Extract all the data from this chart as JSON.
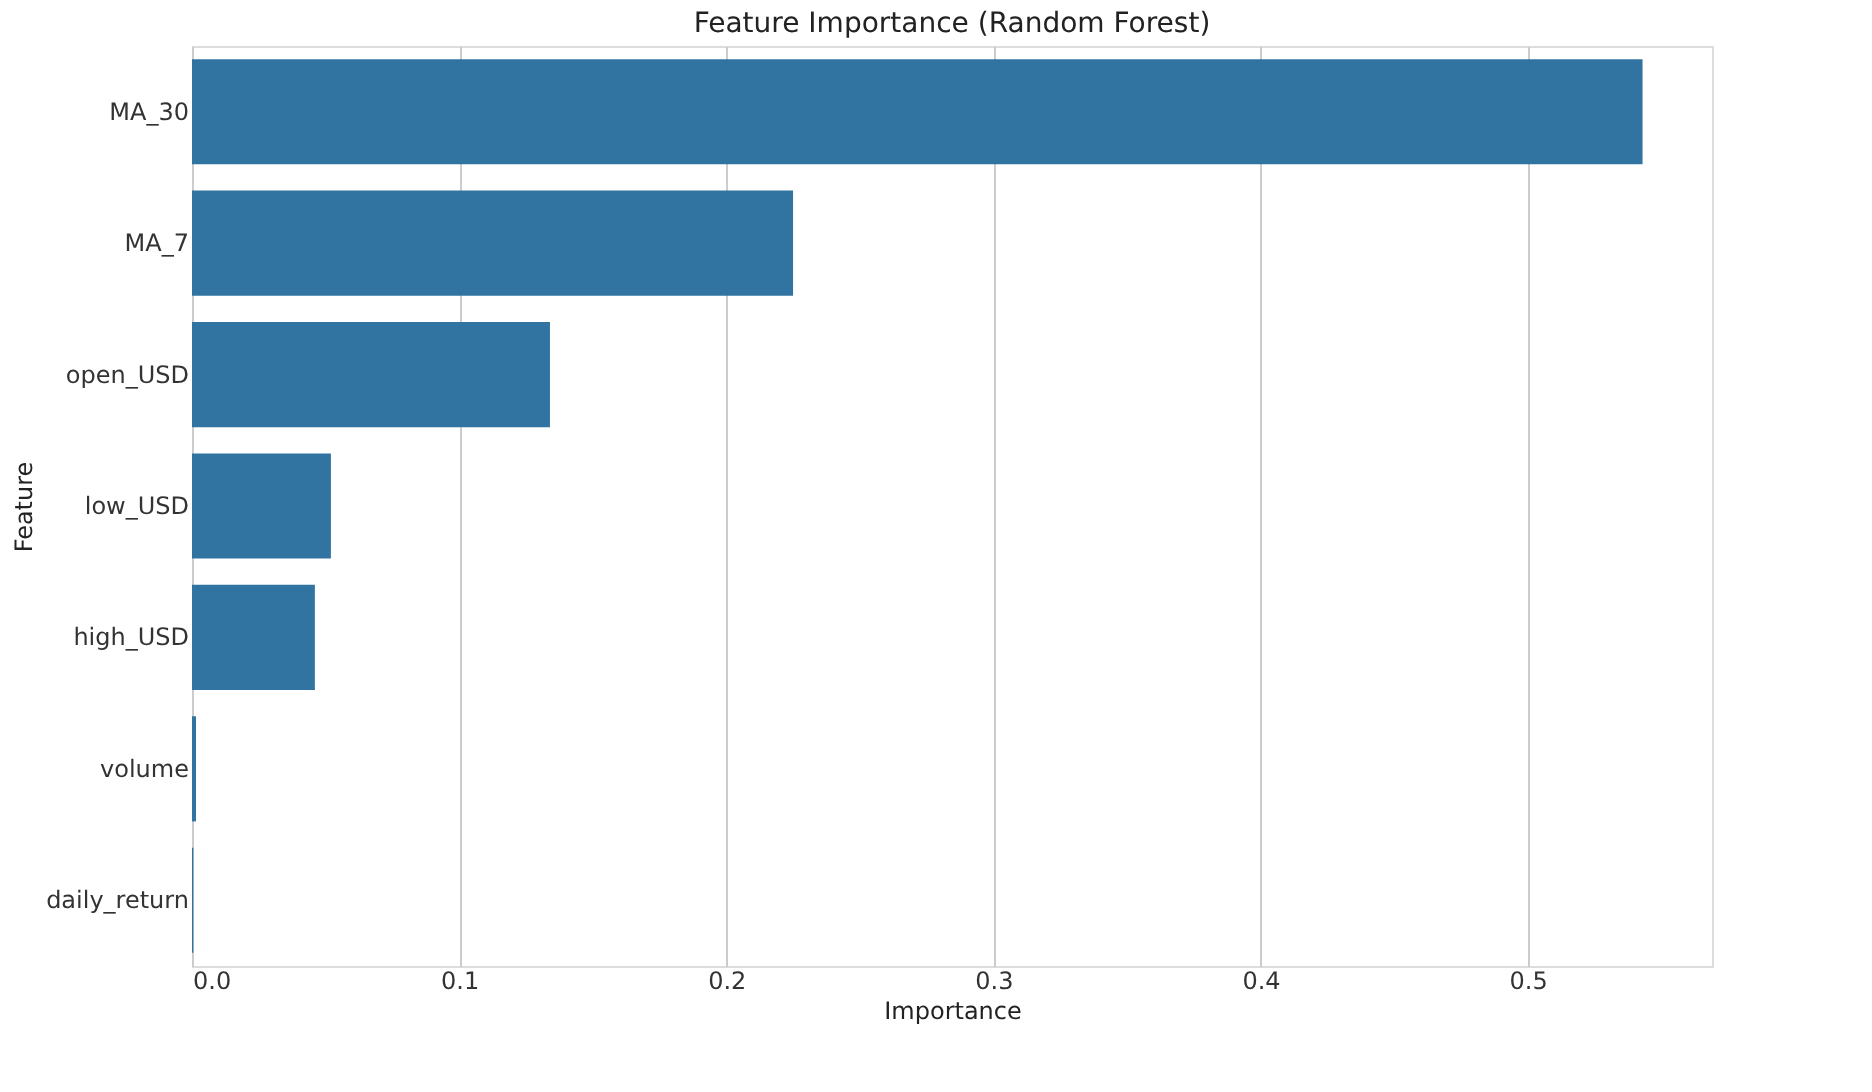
{
  "chart_data": {
    "type": "bar",
    "orientation": "horizontal",
    "title": "Feature Importance (Random Forest)",
    "xlabel": "Importance",
    "ylabel": "Feature",
    "categories": [
      "MA_30",
      "MA_7",
      "open_USD",
      "low_USD",
      "high_USD",
      "volume",
      "daily_return"
    ],
    "values": [
      0.543,
      0.225,
      0.134,
      0.052,
      0.046,
      0.0015,
      0.0005
    ],
    "color": "#3274a1",
    "xlim": [
      0,
      0.569
    ],
    "xticks": [
      {
        "value": 0,
        "label": "0.0"
      },
      0.1,
      0.2,
      0.3,
      0.4,
      0.5
    ],
    "grid": "x"
  }
}
